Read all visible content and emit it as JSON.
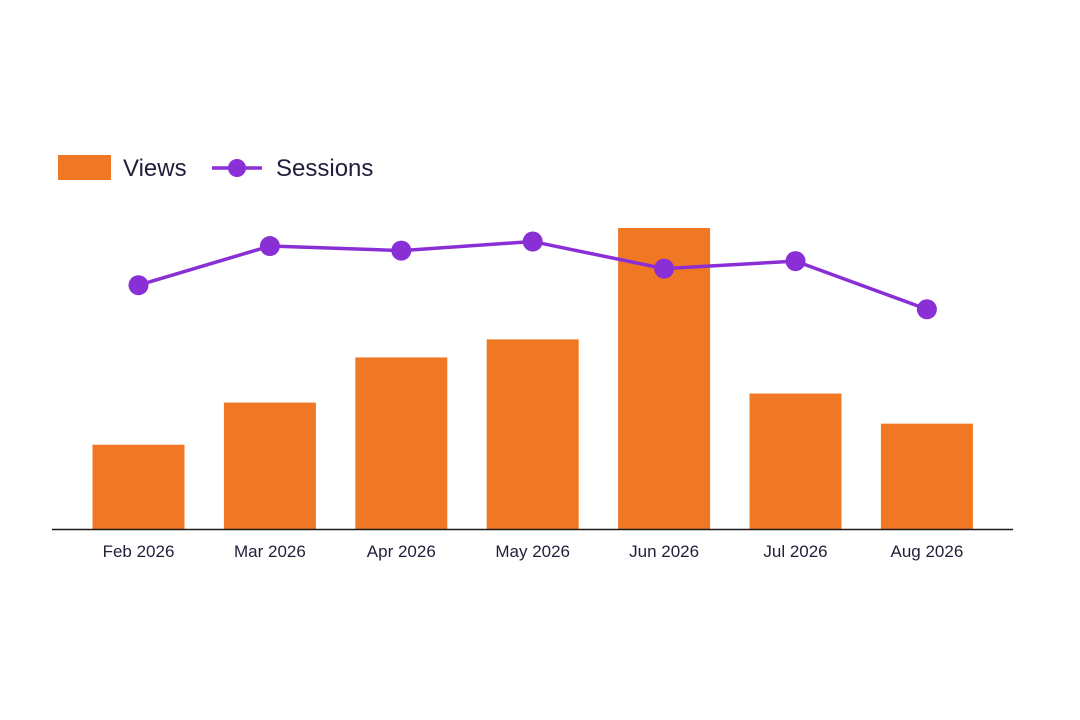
{
  "chart_data": {
    "type": "bar",
    "categories": [
      "Feb 2026",
      "Mar 2026",
      "Apr 2026",
      "May 2026",
      "Jun 2026",
      "Jul 2026",
      "Aug 2026"
    ],
    "series": [
      {
        "name": "Views",
        "type": "bar",
        "axis": "left",
        "color": "#f07824",
        "values": [
          28,
          42,
          57,
          63,
          100,
          45,
          35
        ]
      },
      {
        "name": "Sessions",
        "type": "line",
        "axis": "right",
        "color": "#8a2fd6",
        "values": [
          72,
          98,
          95,
          101,
          83,
          88,
          56
        ]
      }
    ],
    "ylim": [
      0,
      100
    ],
    "y2lim": [
      -90,
      110
    ],
    "grid": false,
    "legend": "top-left"
  }
}
